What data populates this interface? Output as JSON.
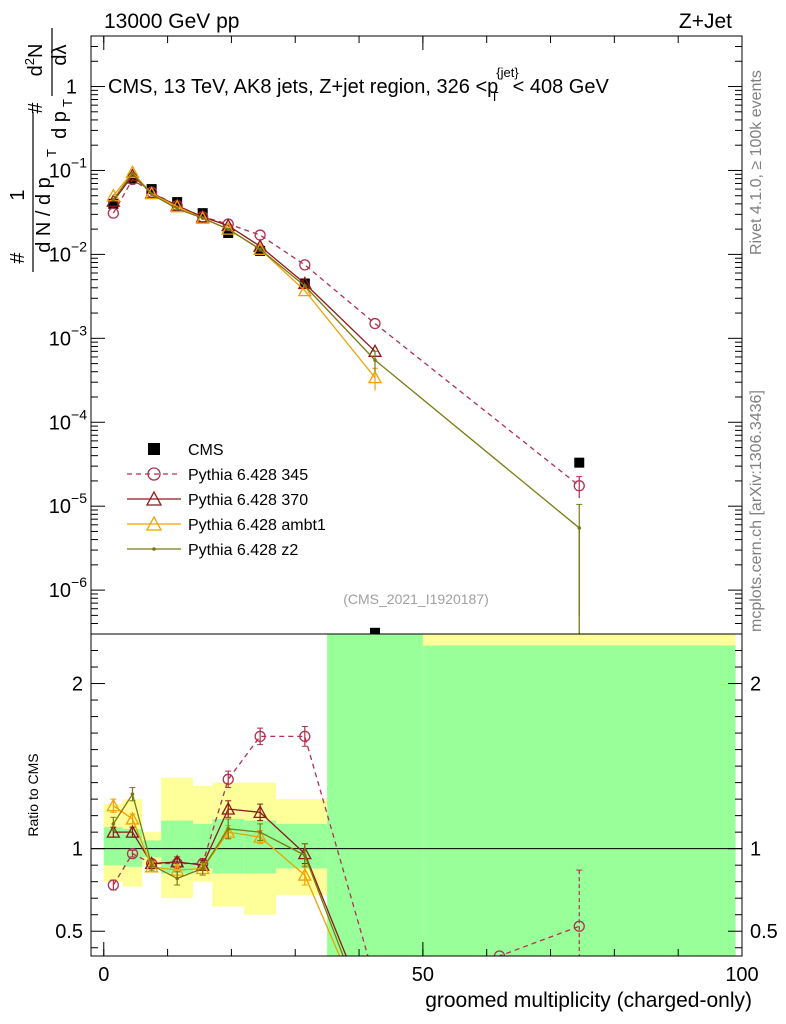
{
  "header": {
    "left": "13000 GeV pp",
    "right": "Z+Jet"
  },
  "side_labels": {
    "rivet": "Rivet 4.1.0, ≥ 100k events",
    "mcplots": "mcplots.cern.ch [arXiv:1306.3436]"
  },
  "chart_data": [
    {
      "type": "line",
      "panel": "main",
      "title": "CMS, 13 TeV, AK8 jets, Z+jet region, 326 <p_T^{jet}< 408 GeV",
      "ylabel": "1/(dN/dp_T) d²N/(dp_T dλ)",
      "ylabel_parts": {
        "top_hash": "#",
        "top_num": "1",
        "bot_left": "d N / d p",
        "bot_sub_left": "T",
        "top_d2N": "d",
        "top_2": "2",
        "top_N": "N",
        "right_hash": "#",
        "bot_right": "d p",
        "bot_sub_right": "T",
        "dlambda": "dλ"
      },
      "yscale": "log",
      "ylim": [
        3e-07,
        4
      ],
      "xlim": [
        -2,
        100
      ],
      "yticks": [
        {
          "v": 1e-06,
          "base": "10",
          "exp": "−6"
        },
        {
          "v": 1e-05,
          "base": "10",
          "exp": "−5"
        },
        {
          "v": 0.0001,
          "base": "10",
          "exp": "−4"
        },
        {
          "v": 0.001,
          "base": "10",
          "exp": "−3"
        },
        {
          "v": 0.01,
          "base": "10",
          "exp": "−2"
        },
        {
          "v": 0.1,
          "base": "10",
          "exp": "−1"
        },
        {
          "v": 1,
          "base": "1",
          "exp": ""
        }
      ],
      "watermark": "(CMS_2021_I1920187)",
      "series": [
        {
          "name": "CMS",
          "color": "#000000",
          "marker": "square",
          "x": [
            1.5,
            4.5,
            7.5,
            11.5,
            15.5,
            19.5,
            24.5,
            31.5,
            42.5,
            74.5
          ],
          "y": [
            0.04,
            0.08,
            0.06,
            0.042,
            0.031,
            0.018,
            0.011,
            0.0045,
            3.1e-07,
            3.3e-05
          ]
        },
        {
          "name": "Pythia 6.428 345",
          "color": "#b03050",
          "marker": "circle",
          "dash": true,
          "x": [
            1.5,
            4.5,
            7.5,
            11.5,
            15.5,
            19.5,
            24.5,
            31.5,
            42.5,
            74.5
          ],
          "y": [
            0.031,
            0.078,
            0.055,
            0.038,
            0.028,
            0.023,
            0.017,
            0.0075,
            0.0015,
            1.75e-05
          ],
          "err": [
            0,
            0,
            0,
            0,
            0,
            0,
            0,
            0,
            0,
            5e-06
          ]
        },
        {
          "name": "Pythia 6.428 370",
          "color": "#8b1a1a",
          "marker": "triangle",
          "x": [
            1.5,
            4.5,
            7.5,
            11.5,
            15.5,
            19.5,
            24.5,
            31.5,
            42.5
          ],
          "y": [
            0.043,
            0.087,
            0.054,
            0.038,
            0.028,
            0.022,
            0.0125,
            0.0045,
            0.0007
          ]
        },
        {
          "name": "Pythia 6.428 ambt1",
          "color": "#f0a000",
          "marker": "triangle",
          "x": [
            1.5,
            4.5,
            7.5,
            11.5,
            15.5,
            19.5,
            24.5,
            31.5,
            42.5
          ],
          "y": [
            0.05,
            0.095,
            0.053,
            0.037,
            0.027,
            0.02,
            0.0115,
            0.0037,
            0.00034
          ],
          "err": [
            0,
            0,
            0,
            0,
            0,
            0,
            0,
            0,
            0.0001
          ]
        },
        {
          "name": "Pythia 6.428 z2",
          "color": "#7a7a10",
          "marker": "dot",
          "x": [
            1.5,
            4.5,
            7.5,
            11.5,
            15.5,
            19.5,
            24.5,
            31.5,
            42.5,
            74.5
          ],
          "y": [
            0.045,
            0.092,
            0.052,
            0.035,
            0.027,
            0.02,
            0.0115,
            0.0042,
            0.00055,
            5.5e-06
          ],
          "err": [
            0,
            0,
            0,
            0,
            0,
            0,
            0,
            0,
            0.00015,
            5e-06
          ]
        }
      ]
    },
    {
      "type": "line",
      "panel": "ratio",
      "ylabel": "Ratio to CMS",
      "xlabel": "groomed multiplicity (charged-only)",
      "ylim": [
        0.35,
        2.3
      ],
      "xlim": [
        -2,
        100
      ],
      "yticks": [
        0.5,
        1,
        2
      ],
      "ytick_labels": [
        "0.5",
        "1",
        "2"
      ],
      "xticks": [
        0,
        50,
        100
      ],
      "xtick_labels": [
        "0",
        "50",
        "100"
      ],
      "bands": [
        {
          "x0": 0,
          "x1": 3,
          "yellow": [
            0.8,
            1.27
          ],
          "green": [
            0.9,
            1.13
          ]
        },
        {
          "x0": 3,
          "x1": 6,
          "yellow": [
            0.77,
            1.3
          ],
          "green": [
            0.89,
            1.12
          ]
        },
        {
          "x0": 6,
          "x1": 9,
          "yellow": [
            0.9,
            1.1
          ],
          "green": [
            0.95,
            1.05
          ]
        },
        {
          "x0": 9,
          "x1": 14,
          "yellow": [
            0.7,
            1.43
          ],
          "green": [
            0.85,
            1.17
          ]
        },
        {
          "x0": 14,
          "x1": 17,
          "yellow": [
            0.8,
            1.38
          ],
          "green": [
            0.88,
            1.15
          ]
        },
        {
          "x0": 17,
          "x1": 22,
          "yellow": [
            0.65,
            1.4
          ],
          "green": [
            0.85,
            1.18
          ]
        },
        {
          "x0": 22,
          "x1": 27,
          "yellow": [
            0.6,
            1.4
          ],
          "green": [
            0.85,
            1.17
          ]
        },
        {
          "x0": 27,
          "x1": 35,
          "yellow": [
            0.72,
            1.3
          ],
          "green": [
            0.88,
            1.15
          ]
        },
        {
          "x0": 35,
          "x1": 50,
          "yellow": [
            0.35,
            2.5
          ],
          "green": [
            0.35,
            2.5
          ]
        },
        {
          "x0": 50,
          "x1": 99,
          "yellow": [
            0.35,
            2.5
          ],
          "green": [
            0.35,
            2.23
          ]
        }
      ],
      "series": [
        {
          "name": "Pythia 6.428 345",
          "color": "#b03050",
          "marker": "circle",
          "dash": true,
          "x": [
            1.5,
            4.5,
            7.5,
            11.5,
            15.5,
            19.5,
            24.5,
            31.5,
            42.5,
            62,
            74.5
          ],
          "y": [
            0.78,
            0.97,
            0.91,
            0.91,
            0.91,
            1.42,
            1.68,
            1.68,
            0.2,
            0.35,
            0.53
          ],
          "err": [
            0.03,
            0.02,
            0.02,
            0.03,
            0.03,
            0.05,
            0.05,
            0.06,
            0,
            0,
            0.34
          ]
        },
        {
          "name": "Pythia 6.428 370",
          "color": "#8b1a1a",
          "marker": "triangle",
          "x": [
            1.5,
            4.5,
            7.5,
            11.5,
            15.5,
            19.5,
            24.5,
            31.5,
            38.5
          ],
          "y": [
            1.1,
            1.1,
            0.91,
            0.92,
            0.9,
            1.24,
            1.22,
            0.97,
            0.3
          ],
          "err": [
            0.03,
            0.03,
            0.02,
            0.03,
            0.03,
            0.05,
            0.05,
            0.06,
            0
          ]
        },
        {
          "name": "Pythia 6.428 ambt1",
          "color": "#f0a000",
          "marker": "triangle",
          "x": [
            1.5,
            4.5,
            7.5,
            11.5,
            15.5,
            19.5,
            24.5,
            31.5,
            37.5
          ],
          "y": [
            1.26,
            1.18,
            0.89,
            0.87,
            0.88,
            1.1,
            1.07,
            0.84,
            0.3
          ],
          "err": [
            0.04,
            0.03,
            0.03,
            0.03,
            0.03,
            0.04,
            0.04,
            0.06,
            0
          ]
        },
        {
          "name": "Pythia 6.428 z2",
          "color": "#7a7a10",
          "marker": "dot",
          "x": [
            1.5,
            4.5,
            7.5,
            11.5,
            15.5,
            19.5,
            24.5,
            31.5,
            38.0
          ],
          "y": [
            1.15,
            1.33,
            0.9,
            0.82,
            0.88,
            1.12,
            1.1,
            0.96,
            0.3
          ],
          "err": [
            0.04,
            0.04,
            0.03,
            0.04,
            0.04,
            0.06,
            0.05,
            0.07,
            0
          ]
        }
      ]
    }
  ]
}
